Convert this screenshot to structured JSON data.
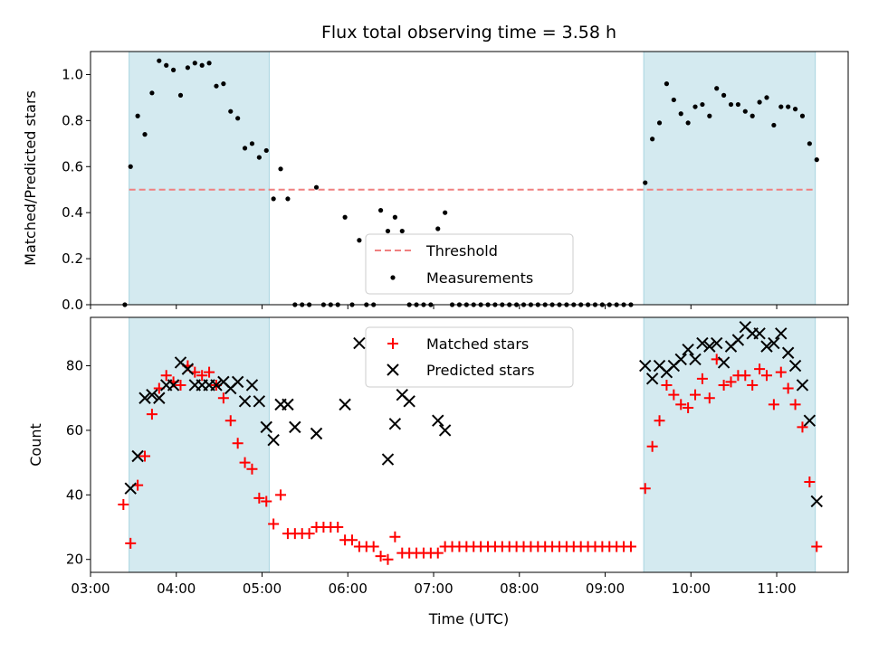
{
  "chart_data": [
    {
      "type": "scatter",
      "title": "Flux total observing time = 3.58 h",
      "xlabel": "",
      "ylabel": "Matched/Predicted stars",
      "xlim": [
        "03:00",
        "11:50"
      ],
      "ylim": [
        0,
        1.1
      ],
      "yticks": [
        "0.0",
        "0.2",
        "0.4",
        "0.6",
        "0.8",
        "1.0"
      ],
      "shaded_intervals": [
        [
          "03:27",
          "05:05"
        ],
        [
          "09:27",
          "11:27"
        ]
      ],
      "shade_color": "#d4eaf0",
      "legend_position": "lower center",
      "threshold": {
        "name": "Threshold",
        "y": 0.5,
        "x_range": [
          "03:27",
          "11:27"
        ],
        "color": "#f08080",
        "style": "dashed"
      },
      "series": [
        {
          "name": "Measurements",
          "color": "#000000",
          "marker": "dot",
          "points": [
            [
              "03:24",
              0.0
            ],
            [
              "03:28",
              0.6
            ],
            [
              "03:33",
              0.82
            ],
            [
              "03:38",
              0.74
            ],
            [
              "03:43",
              0.92
            ],
            [
              "03:48",
              1.06
            ],
            [
              "03:53",
              1.04
            ],
            [
              "03:58",
              1.02
            ],
            [
              "04:03",
              0.91
            ],
            [
              "04:08",
              1.03
            ],
            [
              "04:13",
              1.05
            ],
            [
              "04:18",
              1.04
            ],
            [
              "04:23",
              1.05
            ],
            [
              "04:28",
              0.95
            ],
            [
              "04:33",
              0.96
            ],
            [
              "04:38",
              0.84
            ],
            [
              "04:43",
              0.81
            ],
            [
              "04:48",
              0.68
            ],
            [
              "04:53",
              0.7
            ],
            [
              "04:58",
              0.64
            ],
            [
              "05:03",
              0.67
            ],
            [
              "05:08",
              0.46
            ],
            [
              "05:13",
              0.59
            ],
            [
              "05:18",
              0.46
            ],
            [
              "05:23",
              0.0
            ],
            [
              "05:28",
              0.0
            ],
            [
              "05:33",
              0.0
            ],
            [
              "05:38",
              0.51
            ],
            [
              "05:43",
              0.0
            ],
            [
              "05:48",
              0.0
            ],
            [
              "05:53",
              0.0
            ],
            [
              "05:58",
              0.38
            ],
            [
              "06:03",
              0.0
            ],
            [
              "06:08",
              0.28
            ],
            [
              "06:13",
              0.0
            ],
            [
              "06:18",
              0.0
            ],
            [
              "06:23",
              0.41
            ],
            [
              "06:28",
              0.32
            ],
            [
              "06:33",
              0.38
            ],
            [
              "06:38",
              0.32
            ],
            [
              "06:43",
              0.0
            ],
            [
              "06:48",
              0.0
            ],
            [
              "06:53",
              0.0
            ],
            [
              "06:58",
              0.0
            ],
            [
              "07:03",
              0.33
            ],
            [
              "07:08",
              0.4
            ],
            [
              "07:13",
              0.0
            ],
            [
              "07:18",
              0.0
            ],
            [
              "07:23",
              0.0
            ],
            [
              "07:28",
              0.0
            ],
            [
              "07:33",
              0.0
            ],
            [
              "07:38",
              0.0
            ],
            [
              "07:43",
              0.0
            ],
            [
              "07:48",
              0.0
            ],
            [
              "07:53",
              0.0
            ],
            [
              "07:58",
              0.0
            ],
            [
              "08:03",
              0.0
            ],
            [
              "08:08",
              0.0
            ],
            [
              "08:13",
              0.0
            ],
            [
              "08:18",
              0.0
            ],
            [
              "08:23",
              0.0
            ],
            [
              "08:28",
              0.0
            ],
            [
              "08:33",
              0.0
            ],
            [
              "08:38",
              0.0
            ],
            [
              "08:43",
              0.0
            ],
            [
              "08:48",
              0.0
            ],
            [
              "08:53",
              0.0
            ],
            [
              "08:58",
              0.0
            ],
            [
              "09:03",
              0.0
            ],
            [
              "09:08",
              0.0
            ],
            [
              "09:13",
              0.0
            ],
            [
              "09:18",
              0.0
            ],
            [
              "09:28",
              0.53
            ],
            [
              "09:33",
              0.72
            ],
            [
              "09:38",
              0.79
            ],
            [
              "09:43",
              0.96
            ],
            [
              "09:48",
              0.89
            ],
            [
              "09:53",
              0.83
            ],
            [
              "09:58",
              0.79
            ],
            [
              "10:03",
              0.86
            ],
            [
              "10:08",
              0.87
            ],
            [
              "10:13",
              0.82
            ],
            [
              "10:18",
              0.94
            ],
            [
              "10:23",
              0.91
            ],
            [
              "10:28",
              0.87
            ],
            [
              "10:33",
              0.87
            ],
            [
              "10:38",
              0.84
            ],
            [
              "10:43",
              0.82
            ],
            [
              "10:48",
              0.88
            ],
            [
              "10:53",
              0.9
            ],
            [
              "10:58",
              0.78
            ],
            [
              "11:03",
              0.86
            ],
            [
              "11:08",
              0.86
            ],
            [
              "11:13",
              0.85
            ],
            [
              "11:18",
              0.82
            ],
            [
              "11:23",
              0.7
            ],
            [
              "11:28",
              0.63
            ]
          ]
        }
      ],
      "legend": [
        "Threshold",
        "Measurements"
      ]
    },
    {
      "type": "scatter",
      "title": "",
      "xlabel": "Time (UTC)",
      "ylabel": "Count",
      "xlim": [
        "03:00",
        "11:50"
      ],
      "ylim": [
        16,
        95
      ],
      "yticks": [
        "20",
        "40",
        "60",
        "80"
      ],
      "xticks": [
        "03:00",
        "04:00",
        "05:00",
        "06:00",
        "07:00",
        "08:00",
        "09:00",
        "10:00",
        "11:00"
      ],
      "shaded_intervals": [
        [
          "03:27",
          "05:05"
        ],
        [
          "09:27",
          "11:27"
        ]
      ],
      "legend_position": "upper center",
      "series": [
        {
          "name": "Matched stars",
          "color": "#ff0000",
          "marker": "plus",
          "points": [
            [
              "03:23",
              37
            ],
            [
              "03:28",
              25
            ],
            [
              "03:33",
              43
            ],
            [
              "03:38",
              52
            ],
            [
              "03:43",
              65
            ],
            [
              "03:48",
              73
            ],
            [
              "03:53",
              77
            ],
            [
              "03:58",
              75
            ],
            [
              "04:03",
              74
            ],
            [
              "04:08",
              80
            ],
            [
              "04:13",
              78
            ],
            [
              "04:18",
              77
            ],
            [
              "04:23",
              78
            ],
            [
              "04:28",
              74
            ],
            [
              "04:33",
              70
            ],
            [
              "04:38",
              63
            ],
            [
              "04:43",
              56
            ],
            [
              "04:48",
              50
            ],
            [
              "04:53",
              48
            ],
            [
              "04:58",
              39
            ],
            [
              "05:03",
              38
            ],
            [
              "05:08",
              31
            ],
            [
              "05:13",
              40
            ],
            [
              "05:18",
              28
            ],
            [
              "05:23",
              28
            ],
            [
              "05:28",
              28
            ],
            [
              "05:33",
              28
            ],
            [
              "05:38",
              30
            ],
            [
              "05:43",
              30
            ],
            [
              "05:48",
              30
            ],
            [
              "05:53",
              30
            ],
            [
              "05:58",
              26
            ],
            [
              "06:03",
              26
            ],
            [
              "06:08",
              24
            ],
            [
              "06:13",
              24
            ],
            [
              "06:18",
              24
            ],
            [
              "06:23",
              21
            ],
            [
              "06:28",
              20
            ],
            [
              "06:33",
              27
            ],
            [
              "06:38",
              22
            ],
            [
              "06:43",
              22
            ],
            [
              "06:48",
              22
            ],
            [
              "06:53",
              22
            ],
            [
              "06:58",
              22
            ],
            [
              "07:03",
              22
            ],
            [
              "07:08",
              24
            ],
            [
              "07:13",
              24
            ],
            [
              "07:18",
              24
            ],
            [
              "07:23",
              24
            ],
            [
              "07:28",
              24
            ],
            [
              "07:33",
              24
            ],
            [
              "07:38",
              24
            ],
            [
              "07:43",
              24
            ],
            [
              "07:48",
              24
            ],
            [
              "07:53",
              24
            ],
            [
              "07:58",
              24
            ],
            [
              "08:03",
              24
            ],
            [
              "08:08",
              24
            ],
            [
              "08:13",
              24
            ],
            [
              "08:18",
              24
            ],
            [
              "08:23",
              24
            ],
            [
              "08:28",
              24
            ],
            [
              "08:33",
              24
            ],
            [
              "08:38",
              24
            ],
            [
              "08:43",
              24
            ],
            [
              "08:48",
              24
            ],
            [
              "08:53",
              24
            ],
            [
              "08:58",
              24
            ],
            [
              "09:03",
              24
            ],
            [
              "09:08",
              24
            ],
            [
              "09:13",
              24
            ],
            [
              "09:18",
              24
            ],
            [
              "09:28",
              42
            ],
            [
              "09:33",
              55
            ],
            [
              "09:38",
              63
            ],
            [
              "09:43",
              74
            ],
            [
              "09:48",
              71
            ],
            [
              "09:53",
              68
            ],
            [
              "09:58",
              67
            ],
            [
              "10:03",
              71
            ],
            [
              "10:08",
              76
            ],
            [
              "10:13",
              70
            ],
            [
              "10:18",
              82
            ],
            [
              "10:23",
              74
            ],
            [
              "10:28",
              75
            ],
            [
              "10:33",
              77
            ],
            [
              "10:38",
              77
            ],
            [
              "10:43",
              74
            ],
            [
              "10:48",
              79
            ],
            [
              "10:53",
              77
            ],
            [
              "10:58",
              68
            ],
            [
              "11:03",
              78
            ],
            [
              "11:08",
              73
            ],
            [
              "11:13",
              68
            ],
            [
              "11:18",
              61
            ],
            [
              "11:23",
              44
            ],
            [
              "11:28",
              24
            ]
          ]
        },
        {
          "name": "Predicted stars",
          "color": "#000000",
          "marker": "cross",
          "points": [
            [
              "03:28",
              42
            ],
            [
              "03:33",
              52
            ],
            [
              "03:38",
              70
            ],
            [
              "03:43",
              71
            ],
            [
              "03:48",
              70
            ],
            [
              "03:53",
              74
            ],
            [
              "03:58",
              74
            ],
            [
              "04:03",
              81
            ],
            [
              "04:08",
              79
            ],
            [
              "04:13",
              74
            ],
            [
              "04:18",
              74
            ],
            [
              "04:23",
              74
            ],
            [
              "04:28",
              74
            ],
            [
              "04:33",
              75
            ],
            [
              "04:38",
              73
            ],
            [
              "04:43",
              75
            ],
            [
              "04:48",
              69
            ],
            [
              "04:53",
              74
            ],
            [
              "04:58",
              69
            ],
            [
              "05:03",
              61
            ],
            [
              "05:08",
              57
            ],
            [
              "05:13",
              68
            ],
            [
              "05:18",
              68
            ],
            [
              "05:23",
              61
            ],
            [
              "05:38",
              59
            ],
            [
              "05:58",
              68
            ],
            [
              "06:08",
              87
            ],
            [
              "06:28",
              51
            ],
            [
              "06:33",
              62
            ],
            [
              "06:38",
              71
            ],
            [
              "06:43",
              69
            ],
            [
              "07:03",
              63
            ],
            [
              "07:08",
              60
            ],
            [
              "09:28",
              80
            ],
            [
              "09:33",
              76
            ],
            [
              "09:38",
              80
            ],
            [
              "09:43",
              78
            ],
            [
              "09:48",
              80
            ],
            [
              "09:53",
              82
            ],
            [
              "09:58",
              85
            ],
            [
              "10:03",
              82
            ],
            [
              "10:08",
              87
            ],
            [
              "10:13",
              86
            ],
            [
              "10:18",
              87
            ],
            [
              "10:23",
              81
            ],
            [
              "10:28",
              86
            ],
            [
              "10:33",
              88
            ],
            [
              "10:38",
              92
            ],
            [
              "10:43",
              90
            ],
            [
              "10:48",
              90
            ],
            [
              "10:53",
              86
            ],
            [
              "10:58",
              87
            ],
            [
              "11:03",
              90
            ],
            [
              "11:08",
              84
            ],
            [
              "11:13",
              80
            ],
            [
              "11:18",
              74
            ],
            [
              "11:23",
              63
            ],
            [
              "11:28",
              38
            ]
          ]
        }
      ],
      "legend": [
        "Matched stars",
        "Predicted stars"
      ]
    }
  ]
}
